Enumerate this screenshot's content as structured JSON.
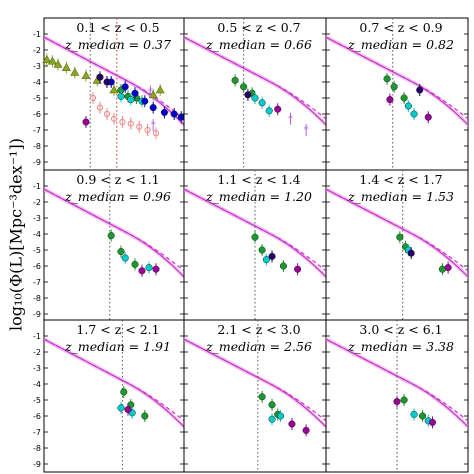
{
  "ylabel": "log₁₀(Φ(L)[Mpc⁻³dex⁻¹])",
  "colors": {
    "fit": "#cc33cc",
    "band": "#e7a3e7",
    "vline": "#555555",
    "vline_red": "#cc3333"
  },
  "chart_data": [
    {
      "type": "scatter",
      "title": "0.1 < z < 0.5",
      "subtitle": "z_median = 0.37",
      "ylim": [
        -9.5,
        0
      ],
      "ticks": [
        "-1",
        "-2",
        "-3",
        "-4",
        "-5",
        "-6",
        "-7",
        "-8",
        "-9"
      ],
      "points": [
        {
          "x": 0.02,
          "y": -2.6,
          "c": "#88aa22",
          "m": "tri"
        },
        {
          "x": 0.06,
          "y": -2.7,
          "c": "#88aa22",
          "m": "tri"
        },
        {
          "x": 0.1,
          "y": -2.9,
          "c": "#88aa22",
          "m": "tri"
        },
        {
          "x": 0.16,
          "y": -3.1,
          "c": "#88aa22",
          "m": "tri"
        },
        {
          "x": 0.22,
          "y": -3.4,
          "c": "#88aa22",
          "m": "tri"
        },
        {
          "x": 0.3,
          "y": -3.6,
          "c": "#88aa22",
          "m": "tri"
        },
        {
          "x": 0.38,
          "y": -3.9,
          "c": "#88aa22",
          "m": "tri"
        },
        {
          "x": 0.5,
          "y": -4.5,
          "c": "#88aa22",
          "m": "tri"
        },
        {
          "x": 0.78,
          "y": -4.8,
          "c": "#88aa22",
          "m": "tri"
        },
        {
          "x": 0.83,
          "y": -4.5,
          "c": "#88aa22",
          "m": "tri"
        },
        {
          "x": 0.55,
          "y": -4.5,
          "c": "#1a9a2a",
          "m": "dot"
        },
        {
          "x": 0.6,
          "y": -4.9,
          "c": "#1a9a2a",
          "m": "dot"
        },
        {
          "x": 0.66,
          "y": -5.0,
          "c": "#1a9a2a",
          "m": "dot"
        },
        {
          "x": 0.55,
          "y": -4.9,
          "c": "#00cccc",
          "m": "dot"
        },
        {
          "x": 0.62,
          "y": -5.1,
          "c": "#00cccc",
          "m": "dot"
        },
        {
          "x": 0.7,
          "y": -5.2,
          "c": "#00cccc",
          "m": "dot"
        },
        {
          "x": 0.48,
          "y": -4.0,
          "c": "#0000cc",
          "m": "dot"
        },
        {
          "x": 0.58,
          "y": -4.3,
          "c": "#0000cc",
          "m": "dot"
        },
        {
          "x": 0.65,
          "y": -4.7,
          "c": "#0000cc",
          "m": "dot"
        },
        {
          "x": 0.72,
          "y": -5.2,
          "c": "#0000cc",
          "m": "dot"
        },
        {
          "x": 0.78,
          "y": -5.6,
          "c": "#0000cc",
          "m": "dot"
        },
        {
          "x": 0.86,
          "y": -5.9,
          "c": "#0000cc",
          "m": "dot"
        },
        {
          "x": 0.93,
          "y": -6.0,
          "c": "#0000cc",
          "m": "dot"
        },
        {
          "x": 0.98,
          "y": -6.2,
          "c": "#0000cc",
          "m": "dot"
        },
        {
          "x": 0.4,
          "y": -3.7,
          "c": "#220066",
          "m": "dot"
        },
        {
          "x": 0.45,
          "y": -4.0,
          "c": "#220066",
          "m": "dot"
        },
        {
          "x": 0.35,
          "y": -5.0,
          "c": "#ee8888",
          "m": "ring"
        },
        {
          "x": 0.4,
          "y": -5.6,
          "c": "#ee8888",
          "m": "ring"
        },
        {
          "x": 0.45,
          "y": -6.0,
          "c": "#ee8888",
          "m": "ring"
        },
        {
          "x": 0.5,
          "y": -6.3,
          "c": "#ee8888",
          "m": "ring"
        },
        {
          "x": 0.56,
          "y": -6.5,
          "c": "#ee8888",
          "m": "ring"
        },
        {
          "x": 0.62,
          "y": -6.6,
          "c": "#ee8888",
          "m": "ring"
        },
        {
          "x": 0.68,
          "y": -6.8,
          "c": "#ee8888",
          "m": "ring"
        },
        {
          "x": 0.74,
          "y": -7.0,
          "c": "#ee8888",
          "m": "ring"
        },
        {
          "x": 0.8,
          "y": -7.2,
          "c": "#ee8888",
          "m": "ring"
        },
        {
          "x": 0.3,
          "y": -6.5,
          "c": "#990099",
          "m": "dot"
        },
        {
          "x": 0.76,
          "y": -4.6,
          "c": "#aa66dd",
          "m": "star"
        },
        {
          "x": 0.78,
          "y": -6.7,
          "c": "#aa66dd",
          "m": "star"
        }
      ],
      "vlines": [
        {
          "x": 0.33,
          "red": false
        },
        {
          "x": 0.52,
          "red": true
        }
      ]
    },
    {
      "type": "scatter",
      "title": "0.5 < z < 0.7",
      "subtitle": "z_median = 0.66",
      "ylim": [
        -9.5,
        0
      ],
      "ticks": [],
      "points": [
        {
          "x": 0.36,
          "y": -3.9,
          "c": "#1a9a2a",
          "m": "dot"
        },
        {
          "x": 0.42,
          "y": -4.3,
          "c": "#1a9a2a",
          "m": "dot"
        },
        {
          "x": 0.48,
          "y": -4.7,
          "c": "#1a9a2a",
          "m": "dot"
        },
        {
          "x": 0.5,
          "y": -5.0,
          "c": "#00cccc",
          "m": "dot"
        },
        {
          "x": 0.55,
          "y": -5.3,
          "c": "#00cccc",
          "m": "dot"
        },
        {
          "x": 0.6,
          "y": -5.8,
          "c": "#00cccc",
          "m": "dot"
        },
        {
          "x": 0.45,
          "y": -4.8,
          "c": "#220066",
          "m": "dot"
        },
        {
          "x": 0.66,
          "y": -5.7,
          "c": "#990099",
          "m": "dot"
        },
        {
          "x": 0.75,
          "y": -6.3,
          "c": "#aa66dd",
          "m": "star"
        },
        {
          "x": 0.86,
          "y": -7.0,
          "c": "#aa66dd",
          "m": "star"
        }
      ],
      "vlines": [
        {
          "x": 0.42,
          "red": false
        }
      ]
    },
    {
      "type": "scatter",
      "title": "0.7 < z < 0.9",
      "subtitle": "z_median = 0.82",
      "ylim": [
        -9.5,
        0
      ],
      "ticks": [],
      "points": [
        {
          "x": 0.43,
          "y": -3.8,
          "c": "#1a9a2a",
          "m": "dot"
        },
        {
          "x": 0.48,
          "y": -4.3,
          "c": "#1a9a2a",
          "m": "dot"
        },
        {
          "x": 0.55,
          "y": -5.0,
          "c": "#1a9a2a",
          "m": "dot"
        },
        {
          "x": 0.58,
          "y": -5.5,
          "c": "#00cccc",
          "m": "dot"
        },
        {
          "x": 0.62,
          "y": -6.0,
          "c": "#00cccc",
          "m": "dot"
        },
        {
          "x": 0.66,
          "y": -4.5,
          "c": "#220066",
          "m": "dot"
        },
        {
          "x": 0.72,
          "y": -6.2,
          "c": "#990099",
          "m": "dot"
        },
        {
          "x": 0.45,
          "y": -5.1,
          "c": "#990099",
          "m": "dot"
        }
      ],
      "vlines": [
        {
          "x": 0.47,
          "red": false
        }
      ]
    },
    {
      "type": "scatter",
      "title": "0.9 < z < 1.1",
      "subtitle": "z_median = 0.96",
      "ylim": [
        -9.5,
        0
      ],
      "ticks": [
        "-1",
        "-2",
        "-3",
        "-4",
        "-5",
        "-6",
        "-7",
        "-8",
        "-9"
      ],
      "points": [
        {
          "x": 0.48,
          "y": -4.1,
          "c": "#1a9a2a",
          "m": "dot"
        },
        {
          "x": 0.55,
          "y": -5.1,
          "c": "#1a9a2a",
          "m": "dot"
        },
        {
          "x": 0.65,
          "y": -5.9,
          "c": "#1a9a2a",
          "m": "dot"
        },
        {
          "x": 0.58,
          "y": -5.5,
          "c": "#00cccc",
          "m": "dot"
        },
        {
          "x": 0.75,
          "y": -6.1,
          "c": "#00cccc",
          "m": "dot"
        },
        {
          "x": 0.7,
          "y": -6.3,
          "c": "#990099",
          "m": "dot"
        },
        {
          "x": 0.8,
          "y": -6.2,
          "c": "#990099",
          "m": "dot"
        }
      ],
      "vlines": [
        {
          "x": 0.47,
          "red": false
        }
      ]
    },
    {
      "type": "scatter",
      "title": "1.1 < z < 1.4",
      "subtitle": "z_median = 1.20",
      "ylim": [
        -9.5,
        0
      ],
      "ticks": [],
      "points": [
        {
          "x": 0.5,
          "y": -4.2,
          "c": "#1a9a2a",
          "m": "dot"
        },
        {
          "x": 0.55,
          "y": -5.0,
          "c": "#1a9a2a",
          "m": "dot"
        },
        {
          "x": 0.7,
          "y": -6.0,
          "c": "#1a9a2a",
          "m": "dot"
        },
        {
          "x": 0.58,
          "y": -5.6,
          "c": "#00cccc",
          "m": "dot"
        },
        {
          "x": 0.62,
          "y": -5.4,
          "c": "#220066",
          "m": "dot"
        },
        {
          "x": 0.8,
          "y": -6.2,
          "c": "#990099",
          "m": "dot"
        }
      ],
      "vlines": [
        {
          "x": 0.5,
          "red": false
        }
      ]
    },
    {
      "type": "scatter",
      "title": "1.4 < z < 1.7",
      "subtitle": "z_median = 1.53",
      "ylim": [
        -9.5,
        0
      ],
      "ticks": [],
      "points": [
        {
          "x": 0.52,
          "y": -4.2,
          "c": "#1a9a2a",
          "m": "dot"
        },
        {
          "x": 0.56,
          "y": -4.8,
          "c": "#1a9a2a",
          "m": "dot"
        },
        {
          "x": 0.82,
          "y": -6.2,
          "c": "#1a9a2a",
          "m": "dot"
        },
        {
          "x": 0.58,
          "y": -5.0,
          "c": "#00cccc",
          "m": "dot"
        },
        {
          "x": 0.6,
          "y": -5.2,
          "c": "#220066",
          "m": "dot"
        },
        {
          "x": 0.86,
          "y": -6.1,
          "c": "#990099",
          "m": "dot"
        }
      ],
      "vlines": [
        {
          "x": 0.54,
          "red": false
        }
      ]
    },
    {
      "type": "scatter",
      "title": "1.7 < z < 2.1",
      "subtitle": "z_median = 1.91",
      "ylim": [
        -9.5,
        0
      ],
      "ticks": [
        "-1",
        "-2",
        "-3",
        "-4",
        "-5",
        "-6",
        "-7",
        "-8",
        "-9"
      ],
      "points": [
        {
          "x": 0.57,
          "y": -4.5,
          "c": "#1a9a2a",
          "m": "dot"
        },
        {
          "x": 0.62,
          "y": -5.3,
          "c": "#1a9a2a",
          "m": "dot"
        },
        {
          "x": 0.72,
          "y": -6.0,
          "c": "#1a9a2a",
          "m": "dot"
        },
        {
          "x": 0.55,
          "y": -5.5,
          "c": "#00cccc",
          "m": "dot"
        },
        {
          "x": 0.63,
          "y": -5.8,
          "c": "#00cccc",
          "m": "dot"
        },
        {
          "x": 0.6,
          "y": -5.6,
          "c": "#990099",
          "m": "dot"
        }
      ],
      "vlines": [
        {
          "x": 0.56,
          "red": false
        }
      ]
    },
    {
      "type": "scatter",
      "title": "2.1 < z < 3.0",
      "subtitle": "z_median = 2.56",
      "ylim": [
        -9.5,
        0
      ],
      "ticks": [],
      "points": [
        {
          "x": 0.55,
          "y": -4.8,
          "c": "#1a9a2a",
          "m": "dot"
        },
        {
          "x": 0.62,
          "y": -5.3,
          "c": "#1a9a2a",
          "m": "dot"
        },
        {
          "x": 0.66,
          "y": -5.9,
          "c": "#1a9a2a",
          "m": "dot"
        },
        {
          "x": 0.62,
          "y": -6.2,
          "c": "#00cccc",
          "m": "dot"
        },
        {
          "x": 0.68,
          "y": -6.0,
          "c": "#00cccc",
          "m": "dot"
        },
        {
          "x": 0.76,
          "y": -6.5,
          "c": "#990099",
          "m": "dot"
        },
        {
          "x": 0.86,
          "y": -6.9,
          "c": "#990099",
          "m": "dot"
        }
      ],
      "vlines": [
        {
          "x": 0.52,
          "red": false
        }
      ]
    },
    {
      "type": "scatter",
      "title": "3.0 < z < 6.1",
      "subtitle": "z_median = 3.38",
      "ylim": [
        -9.5,
        0
      ],
      "ticks": [],
      "points": [
        {
          "x": 0.55,
          "y": -5.0,
          "c": "#1a9a2a",
          "m": "dot"
        },
        {
          "x": 0.68,
          "y": -6.0,
          "c": "#1a9a2a",
          "m": "dot"
        },
        {
          "x": 0.62,
          "y": -5.9,
          "c": "#00cccc",
          "m": "dot"
        },
        {
          "x": 0.72,
          "y": -6.3,
          "c": "#00cccc",
          "m": "dot"
        },
        {
          "x": 0.5,
          "y": -5.1,
          "c": "#990099",
          "m": "dot"
        },
        {
          "x": 0.75,
          "y": -6.4,
          "c": "#990099",
          "m": "dot"
        }
      ],
      "vlines": [
        {
          "x": 0.5,
          "red": false
        }
      ]
    }
  ]
}
